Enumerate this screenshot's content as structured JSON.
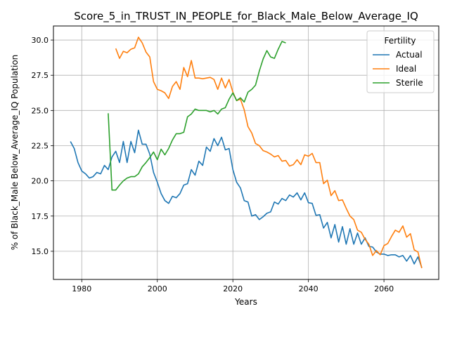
{
  "chart_data": {
    "type": "line",
    "title": "Score_5_in_TRUST_IN_PEOPLE_for_Black_Male_Below_Average_IQ",
    "xlabel": "Years",
    "ylabel": "% of Black_Male Below_Average_IQ Population",
    "xlim": [
      1972.5,
      2074.5
    ],
    "ylim": [
      13.0,
      31.0
    ],
    "xticks": [
      1980,
      2000,
      2020,
      2040,
      2060
    ],
    "yticks": [
      15.0,
      17.5,
      20.0,
      22.5,
      25.0,
      27.5,
      30.0
    ],
    "grid": true,
    "legend": {
      "title": "Fertility",
      "position": "top-right"
    },
    "series": [
      {
        "name": "Actual",
        "color": "#1f77b4",
        "x": [
          1977,
          1978,
          1979,
          1980,
          1981,
          1982,
          1983,
          1984,
          1985,
          1986,
          1987,
          1988,
          1989,
          1990,
          1991,
          1992,
          1993,
          1994,
          1995,
          1996,
          1997,
          1998,
          1999,
          2000,
          2001,
          2002,
          2003,
          2004,
          2005,
          2006,
          2007,
          2008,
          2009,
          2010,
          2011,
          2012,
          2013,
          2014,
          2015,
          2016,
          2017,
          2018,
          2019,
          2020,
          2021,
          2022,
          2023,
          2024,
          2025,
          2026,
          2027,
          2028,
          2029,
          2030,
          2031,
          2032,
          2033,
          2034,
          2035,
          2036,
          2037,
          2038,
          2039,
          2040,
          2041,
          2042,
          2043,
          2044,
          2045,
          2046,
          2047,
          2048,
          2049,
          2050,
          2051,
          2052,
          2053,
          2054,
          2055,
          2056,
          2057,
          2058,
          2059,
          2060,
          2061,
          2062,
          2063,
          2064,
          2065,
          2066,
          2067,
          2068,
          2069,
          2070
        ],
        "values": [
          22.8,
          22.3,
          21.3,
          20.7,
          20.5,
          20.2,
          20.3,
          20.6,
          20.5,
          21.1,
          20.8,
          21.7,
          22.1,
          21.3,
          22.8,
          21.3,
          22.8,
          22.0,
          23.6,
          22.6,
          22.6,
          21.9,
          20.6,
          19.9,
          19.1,
          18.6,
          18.4,
          18.9,
          18.8,
          19.1,
          19.7,
          19.8,
          20.8,
          20.4,
          21.4,
          21.1,
          22.4,
          22.1,
          23.0,
          22.5,
          23.1,
          22.2,
          22.3,
          20.8,
          19.9,
          19.5,
          18.6,
          18.5,
          17.5,
          17.6,
          17.25,
          17.45,
          17.7,
          17.8,
          18.5,
          18.35,
          18.75,
          18.6,
          19.0,
          18.85,
          19.15,
          18.65,
          19.15,
          18.45,
          18.4,
          17.55,
          17.6,
          16.65,
          17.05,
          15.95,
          16.9,
          15.65,
          16.75,
          15.5,
          16.6,
          15.5,
          16.3,
          15.5,
          15.95,
          15.35,
          15.3,
          14.95,
          14.8,
          14.8,
          14.7,
          14.75,
          14.75,
          14.6,
          14.7,
          14.3,
          14.7,
          14.1,
          14.6,
          13.85
        ]
      },
      {
        "name": "Ideal",
        "color": "#ff7f0e",
        "x": [
          1989,
          1990,
          1991,
          1992,
          1993,
          1994,
          1995,
          1996,
          1997,
          1998,
          1999,
          2000,
          2001,
          2002,
          2003,
          2004,
          2005,
          2006,
          2007,
          2008,
          2009,
          2010,
          2011,
          2012,
          2013,
          2014,
          2015,
          2016,
          2017,
          2018,
          2019,
          2020,
          2021,
          2022,
          2023,
          2024,
          2025,
          2026,
          2027,
          2028,
          2029,
          2030,
          2031,
          2032,
          2033,
          2034,
          2035,
          2036,
          2037,
          2038,
          2039,
          2040,
          2041,
          2042,
          2043,
          2044,
          2045,
          2046,
          2047,
          2048,
          2049,
          2050,
          2051,
          2052,
          2053,
          2054,
          2055,
          2056,
          2057,
          2058,
          2059,
          2060,
          2061,
          2062,
          2063,
          2064,
          2065,
          2066,
          2067,
          2068,
          2069,
          2070
        ],
        "values": [
          29.4,
          28.7,
          29.2,
          29.1,
          29.35,
          29.45,
          30.2,
          29.8,
          29.15,
          28.8,
          27.05,
          26.5,
          26.4,
          26.25,
          25.85,
          26.7,
          27.05,
          26.5,
          28.05,
          27.4,
          28.55,
          27.3,
          27.3,
          27.25,
          27.3,
          27.35,
          27.2,
          26.5,
          27.3,
          26.6,
          27.2,
          26.3,
          25.7,
          25.8,
          25.05,
          23.85,
          23.4,
          22.65,
          22.5,
          22.15,
          22.05,
          21.9,
          21.7,
          21.8,
          21.4,
          21.45,
          21.05,
          21.15,
          21.5,
          21.15,
          21.85,
          21.75,
          21.95,
          21.3,
          21.3,
          19.8,
          20.05,
          18.95,
          19.3,
          18.6,
          18.65,
          18.05,
          17.5,
          17.25,
          16.5,
          16.35,
          15.85,
          15.5,
          14.7,
          15.05,
          14.75,
          15.4,
          15.55,
          16.05,
          16.5,
          16.35,
          16.8,
          16.0,
          16.25,
          15.1,
          14.95,
          13.8
        ]
      },
      {
        "name": "Sterile",
        "color": "#2ca02c",
        "x": [
          1987,
          1988,
          1989,
          1990,
          1991,
          1992,
          1993,
          1994,
          1995,
          1996,
          1997,
          1998,
          1999,
          2000,
          2001,
          2002,
          2003,
          2004,
          2005,
          2006,
          2007,
          2008,
          2009,
          2010,
          2011,
          2012,
          2013,
          2014,
          2015,
          2016,
          2017,
          2018,
          2019,
          2020,
          2021,
          2022,
          2023,
          2024,
          2025,
          2026,
          2027,
          2028,
          2029,
          2030,
          2031,
          2032,
          2033,
          2034
        ],
        "values": [
          24.8,
          19.35,
          19.35,
          19.7,
          20.0,
          20.2,
          20.3,
          20.3,
          20.5,
          21.0,
          21.3,
          21.65,
          22.05,
          21.5,
          22.25,
          21.85,
          22.3,
          22.9,
          23.35,
          23.35,
          23.45,
          24.55,
          24.75,
          25.1,
          25.0,
          25.0,
          25.0,
          24.9,
          25.0,
          24.75,
          25.1,
          25.2,
          25.8,
          26.25,
          25.7,
          25.9,
          25.6,
          26.3,
          26.5,
          26.8,
          27.8,
          28.65,
          29.25,
          28.8,
          28.7,
          29.35,
          29.9,
          29.8
        ]
      }
    ]
  }
}
